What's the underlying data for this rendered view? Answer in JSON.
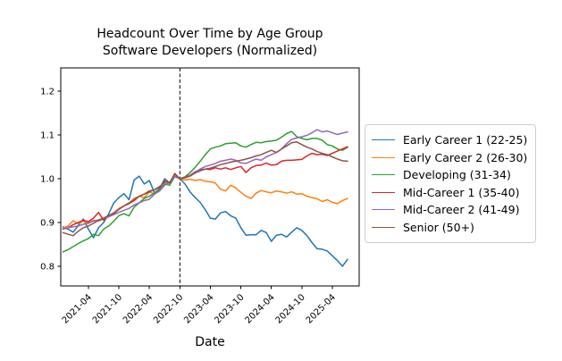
{
  "chart_data": {
    "type": "line",
    "title": "Headcount Over Time by Age Group",
    "subtitle": "Software Developers (Normalized)",
    "xlabel": "Date",
    "ylabel": "",
    "grid": false,
    "legend_position": "outside-right",
    "normalized_at": "2022-10",
    "annotation": {
      "type": "vline",
      "x": "2022-10",
      "style": "dashed",
      "color": "#000000"
    },
    "ylim": [
      0.753,
      1.253
    ],
    "y_ticks": [
      0.8,
      0.9,
      1.0,
      1.1,
      1.2
    ],
    "x_tick_labels": [
      "2021-04",
      "2021-10",
      "2022-04",
      "2022-10",
      "2023-04",
      "2023-10",
      "2024-04",
      "2024-10",
      "2025-04"
    ],
    "x": [
      "2020-11",
      "2020-12",
      "2021-01",
      "2021-02",
      "2021-03",
      "2021-04",
      "2021-05",
      "2021-06",
      "2021-07",
      "2021-08",
      "2021-09",
      "2021-10",
      "2021-11",
      "2021-12",
      "2022-01",
      "2022-02",
      "2022-03",
      "2022-04",
      "2022-05",
      "2022-06",
      "2022-07",
      "2022-08",
      "2022-09",
      "2022-10",
      "2022-11",
      "2022-12",
      "2023-01",
      "2023-02",
      "2023-03",
      "2023-04",
      "2023-05",
      "2023-06",
      "2023-07",
      "2023-08",
      "2023-09",
      "2023-10",
      "2023-11",
      "2023-12",
      "2024-01",
      "2024-02",
      "2024-03",
      "2024-04",
      "2024-05",
      "2024-06",
      "2024-07",
      "2024-08",
      "2024-09",
      "2024-10",
      "2024-11",
      "2024-12",
      "2025-01",
      "2025-02",
      "2025-03",
      "2025-04",
      "2025-05",
      "2025-06",
      "2025-07"
    ],
    "series": [
      {
        "name": "Early Career 1 (22-25)",
        "color": "#1f77b4",
        "values": [
          0.89,
          0.885,
          0.878,
          0.893,
          0.908,
          0.885,
          0.865,
          0.888,
          0.9,
          0.92,
          0.945,
          0.957,
          0.966,
          0.952,
          0.997,
          1.006,
          0.988,
          0.996,
          0.968,
          0.977,
          1.0,
          0.99,
          1.011,
          1.0,
          0.988,
          0.97,
          0.957,
          0.946,
          0.929,
          0.91,
          0.908,
          0.922,
          0.925,
          0.915,
          0.91,
          0.888,
          0.871,
          0.872,
          0.872,
          0.882,
          0.877,
          0.857,
          0.871,
          0.873,
          0.867,
          0.878,
          0.888,
          0.882,
          0.87,
          0.854,
          0.84,
          0.839,
          0.835,
          0.824,
          0.813,
          0.8,
          0.816
        ]
      },
      {
        "name": "Early Career 2 (26-30)",
        "color": "#ff7f0e",
        "values": [
          0.888,
          0.892,
          0.904,
          0.897,
          0.903,
          0.899,
          0.905,
          0.903,
          0.908,
          0.915,
          0.922,
          0.932,
          0.938,
          0.944,
          0.955,
          0.96,
          0.957,
          0.97,
          0.965,
          0.975,
          0.988,
          0.99,
          1.01,
          1.0,
          0.997,
          0.999,
          0.996,
          0.998,
          0.994,
          0.993,
          0.99,
          0.976,
          0.972,
          0.985,
          0.979,
          0.969,
          0.96,
          0.955,
          0.967,
          0.973,
          0.97,
          0.968,
          0.972,
          0.97,
          0.967,
          0.97,
          0.965,
          0.966,
          0.96,
          0.957,
          0.954,
          0.948,
          0.952,
          0.946,
          0.943,
          0.95,
          0.955
        ]
      },
      {
        "name": "Developing (31-34)",
        "color": "#2ca02c",
        "values": [
          0.833,
          0.838,
          0.845,
          0.852,
          0.858,
          0.863,
          0.873,
          0.87,
          0.885,
          0.892,
          0.903,
          0.916,
          0.92,
          0.915,
          0.935,
          0.945,
          0.955,
          0.96,
          0.968,
          0.975,
          0.988,
          0.985,
          1.005,
          1.0,
          1.004,
          1.014,
          1.026,
          1.04,
          1.055,
          1.068,
          1.072,
          1.075,
          1.08,
          1.081,
          1.082,
          1.075,
          1.072,
          1.078,
          1.083,
          1.082,
          1.085,
          1.086,
          1.088,
          1.095,
          1.103,
          1.108,
          1.096,
          1.092,
          1.089,
          1.092,
          1.092,
          1.088,
          1.078,
          1.075,
          1.068,
          1.065,
          1.072
        ]
      },
      {
        "name": "Mid-Career 1 (35-40)",
        "color": "#d62728",
        "values": [
          0.885,
          0.888,
          0.895,
          0.9,
          0.905,
          0.902,
          0.91,
          0.923,
          0.905,
          0.916,
          0.92,
          0.93,
          0.938,
          0.943,
          0.95,
          0.96,
          0.965,
          0.972,
          0.975,
          0.98,
          0.995,
          0.99,
          1.012,
          1.0,
          1.003,
          1.008,
          1.016,
          1.02,
          1.022,
          1.021,
          1.025,
          1.022,
          1.025,
          1.021,
          1.025,
          1.028,
          1.014,
          1.025,
          1.03,
          1.031,
          1.036,
          1.031,
          1.032,
          1.04,
          1.042,
          1.042,
          1.043,
          1.044,
          1.052,
          1.058,
          1.055,
          1.056,
          1.053,
          1.058,
          1.063,
          1.068,
          1.073
        ]
      },
      {
        "name": "Mid-Career 2 (41-49)",
        "color": "#9467bd",
        "values": [
          0.886,
          0.888,
          0.89,
          0.892,
          0.896,
          0.898,
          0.903,
          0.906,
          0.91,
          0.913,
          0.918,
          0.923,
          0.928,
          0.932,
          0.94,
          0.945,
          0.95,
          0.953,
          0.965,
          0.972,
          0.985,
          0.992,
          1.005,
          1.0,
          1.002,
          1.008,
          1.015,
          1.022,
          1.028,
          1.031,
          1.035,
          1.04,
          1.042,
          1.045,
          1.042,
          1.036,
          1.035,
          1.04,
          1.045,
          1.042,
          1.05,
          1.055,
          1.06,
          1.068,
          1.08,
          1.09,
          1.093,
          1.096,
          1.099,
          1.105,
          1.112,
          1.107,
          1.109,
          1.105,
          1.101,
          1.104,
          1.107
        ]
      },
      {
        "name": "Senior (50+)",
        "color": "#8c564b",
        "values": [
          0.877,
          0.873,
          0.87,
          0.88,
          0.888,
          0.892,
          0.898,
          0.905,
          0.91,
          0.916,
          0.922,
          0.93,
          0.938,
          0.945,
          0.952,
          0.96,
          0.965,
          0.97,
          0.975,
          0.982,
          0.992,
          0.992,
          1.01,
          1.0,
          1.002,
          1.006,
          1.013,
          1.018,
          1.022,
          1.024,
          1.028,
          1.032,
          1.035,
          1.038,
          1.04,
          1.042,
          1.045,
          1.048,
          1.052,
          1.055,
          1.06,
          1.065,
          1.06,
          1.068,
          1.075,
          1.082,
          1.084,
          1.078,
          1.072,
          1.068,
          1.062,
          1.058,
          1.055,
          1.05,
          1.045,
          1.041,
          1.04
        ]
      }
    ]
  }
}
